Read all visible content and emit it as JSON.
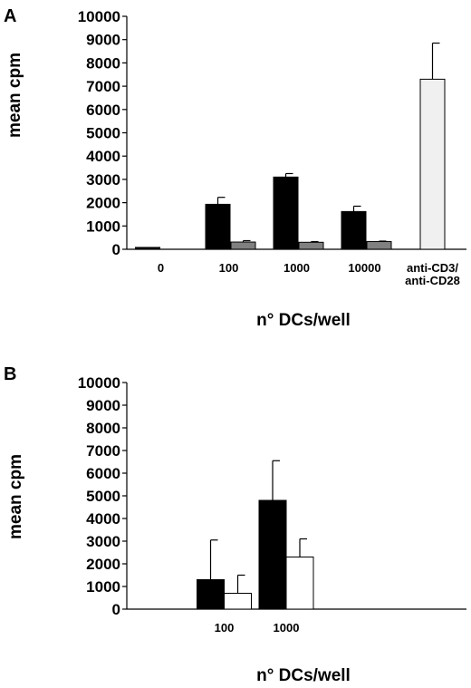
{
  "chart_data": [
    {
      "panel": "A",
      "type": "bar",
      "ylabel": "mean cpm",
      "xlabel": "n° DCs/well",
      "ylim": [
        0,
        10000
      ],
      "yticks": [
        0,
        1000,
        2000,
        3000,
        4000,
        5000,
        6000,
        7000,
        8000,
        9000,
        10000
      ],
      "categories": [
        {
          "lines": [
            "0"
          ]
        },
        {
          "lines": [
            "100"
          ]
        },
        {
          "lines": [
            "1000"
          ]
        },
        {
          "lines": [
            "10000"
          ]
        },
        {
          "lines": [
            "anti-CD3/",
            "anti-CD28"
          ]
        }
      ],
      "series": [
        {
          "color": "#000000",
          "values": [
            80,
            1930,
            3100,
            1620,
            null
          ],
          "errors": [
            0,
            300,
            150,
            230,
            null
          ]
        },
        {
          "color": "#808080",
          "values": [
            null,
            310,
            300,
            330,
            null
          ],
          "errors": [
            null,
            60,
            30,
            20,
            null
          ]
        },
        {
          "color": "#f0f0f0",
          "values": [
            null,
            null,
            null,
            null,
            7300
          ],
          "errors": [
            null,
            null,
            null,
            null,
            1550
          ]
        }
      ],
      "grid": false,
      "legend": "none"
    },
    {
      "panel": "B",
      "type": "bar",
      "ylabel": "mean cpm",
      "xlabel": "n° DCs/well",
      "ylim": [
        0,
        10000
      ],
      "yticks": [
        0,
        1000,
        2000,
        3000,
        4000,
        5000,
        6000,
        7000,
        8000,
        9000,
        10000
      ],
      "categories": [
        {
          "lines": [
            "100"
          ]
        },
        {
          "lines": [
            "1000"
          ]
        }
      ],
      "series": [
        {
          "color": "#000000",
          "values": [
            1300,
            4800
          ],
          "errors": [
            1750,
            1750
          ]
        },
        {
          "color": "#ffffff",
          "values": [
            700,
            2300
          ],
          "errors": [
            800,
            800
          ]
        }
      ],
      "grid": false,
      "legend": "none"
    }
  ]
}
